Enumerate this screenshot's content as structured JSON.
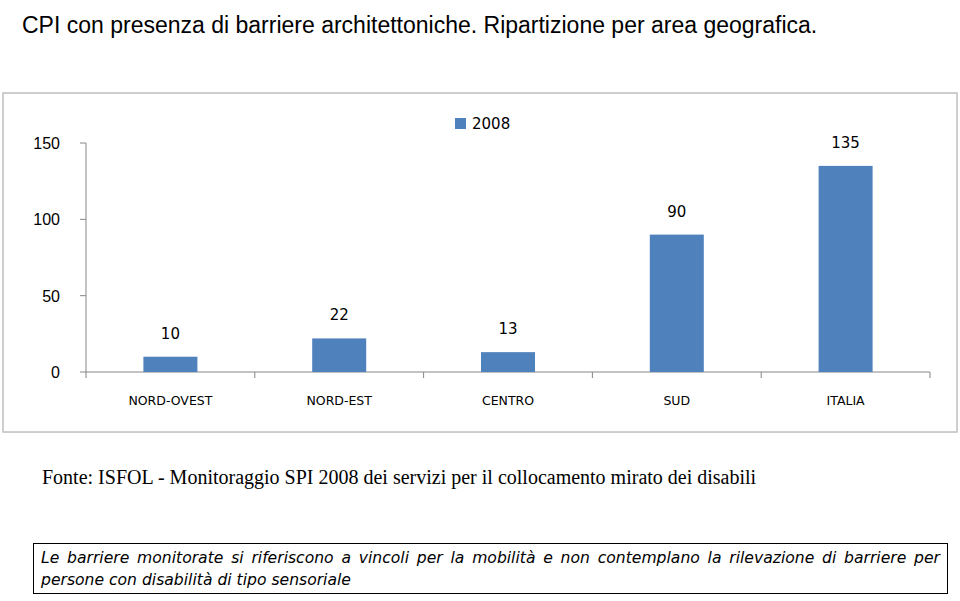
{
  "chart_data": {
    "type": "bar",
    "title": "CPI con presenza di barriere architettoniche. Ripartizione per area geografica.",
    "categories": [
      "NORD-OVEST",
      "NORD-EST",
      "CENTRO",
      "SUD",
      "ITALIA"
    ],
    "series": [
      {
        "name": "2008",
        "color": "#4f81bd",
        "values": [
          10,
          22,
          13,
          90,
          135
        ]
      }
    ],
    "ylim": [
      0,
      150
    ],
    "yticks": [
      0,
      50,
      100,
      150
    ],
    "grid": false,
    "legend": "top",
    "data_labels": true,
    "annotations": [
      "Fonte: ISFOL - Monitoraggio SPI 2008 dei servizi per il collocamento mirato dei disabili",
      "Le barriere monitorate si riferiscono a vincoli per la mobilità e non contemplano la rilevazione di barriere per persone con disabilità di tipo sensoriale"
    ]
  }
}
